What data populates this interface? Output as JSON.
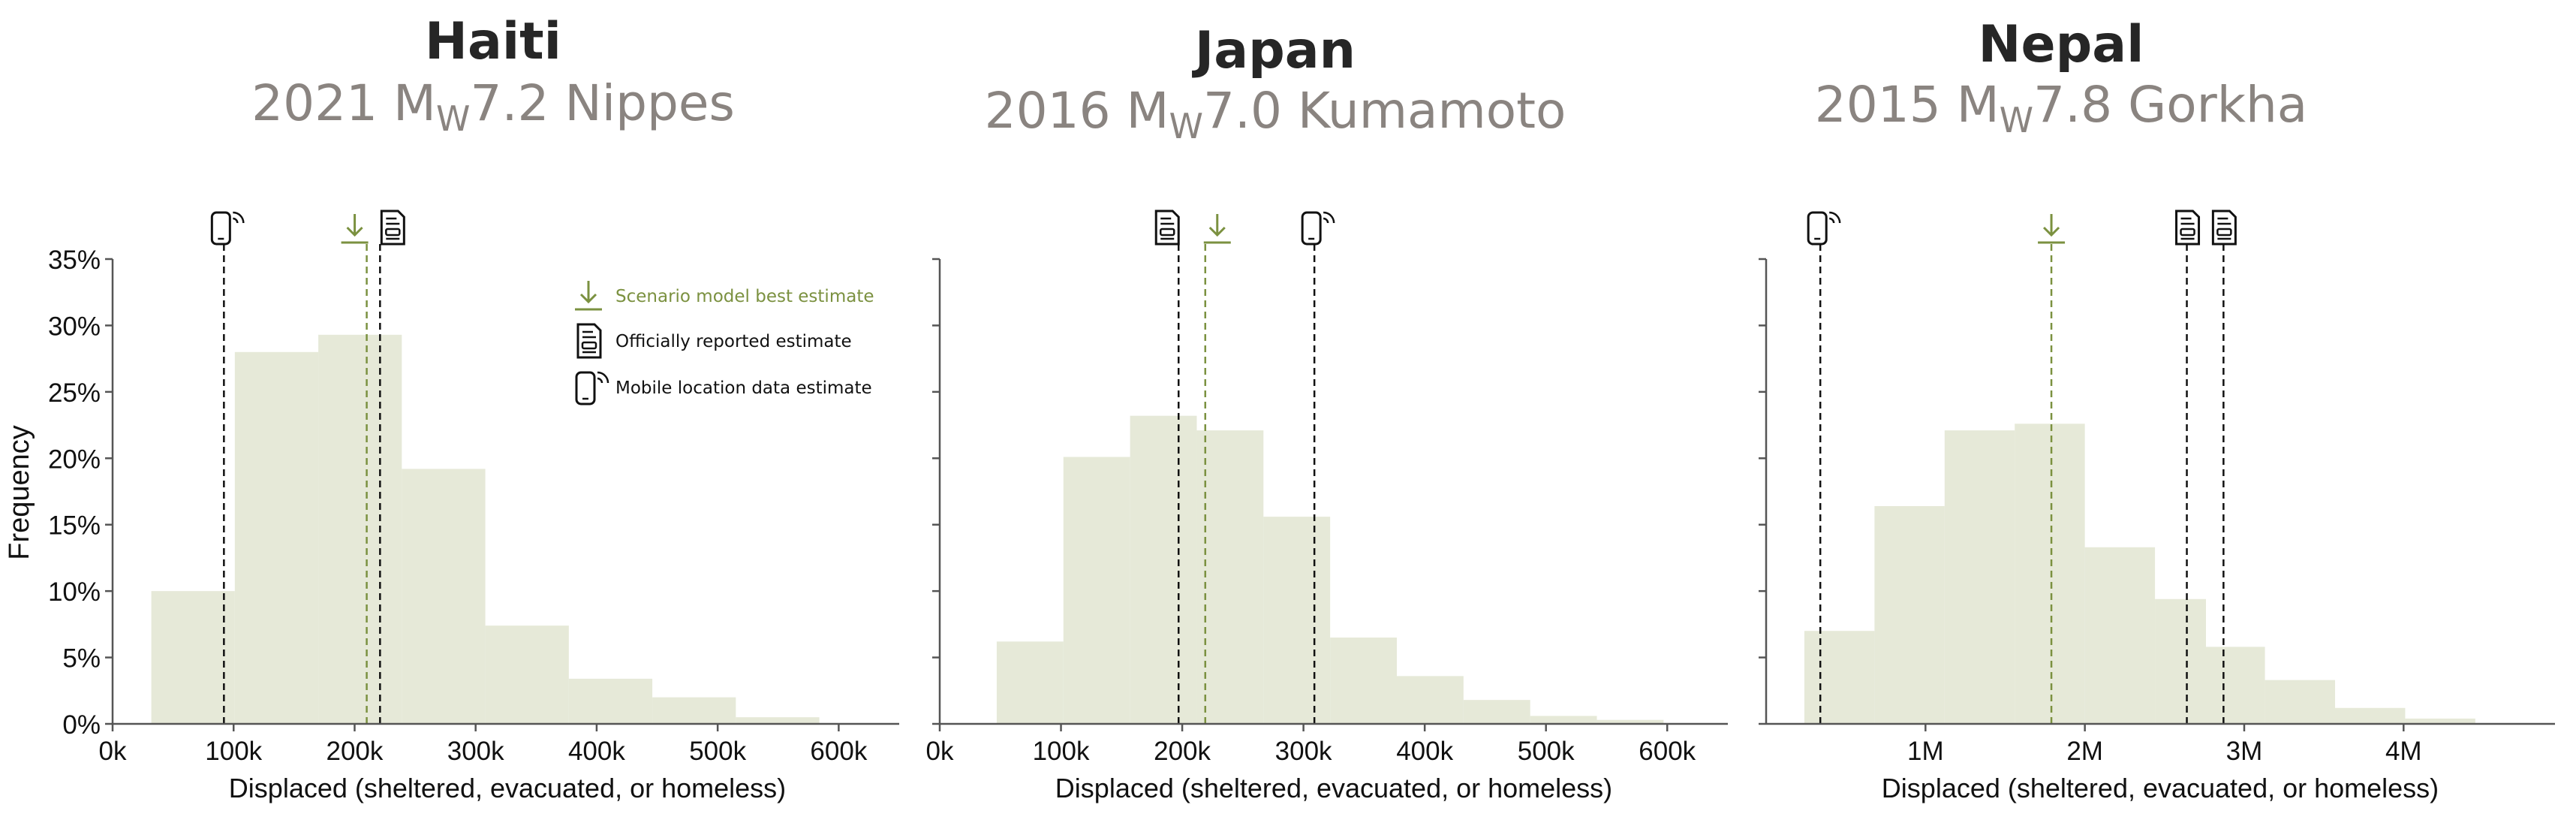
{
  "figure": {
    "ylabel": "Frequency",
    "legend": {
      "placement": "top-right of first panel",
      "items": [
        {
          "icon": "download-arrow-icon",
          "label": "Scenario model best estimate",
          "color": "#7b9140"
        },
        {
          "icon": "document-icon",
          "label": "Officially reported estimate",
          "color": "#111111"
        },
        {
          "icon": "mobile-signal-icon",
          "label": "Mobile location data estimate",
          "color": "#111111"
        }
      ]
    },
    "colors": {
      "bar": "#e6e9d8",
      "scenario": "#7b9140",
      "reference": "#111111",
      "axis": "#555555"
    }
  },
  "chart_data": [
    {
      "type": "bar",
      "title": "Haiti",
      "subtitle": {
        "pre": "2021 M",
        "sub": "W",
        "post": "7.2 Nippes"
      },
      "xlabel": "Displaced (sheltered, evacuated, or homeless)",
      "ylabel": "Frequency",
      "xlim": [
        0,
        650000
      ],
      "ylim": [
        0,
        35
      ],
      "xticks": [
        0,
        100000,
        200000,
        300000,
        400000,
        500000,
        600000
      ],
      "xtick_labels": [
        "0k",
        "100k",
        "200k",
        "300k",
        "400k",
        "500k",
        "600k"
      ],
      "yticks": [
        0,
        5,
        10,
        15,
        20,
        25,
        30,
        35
      ],
      "ytick_labels": [
        "0%",
        "5%",
        "10%",
        "15%",
        "20%",
        "25%",
        "30%",
        "35%"
      ],
      "bin_edges": [
        32000,
        101000,
        170000,
        239000,
        308000,
        377000,
        446000,
        515000,
        584000
      ],
      "values": [
        10.0,
        28.0,
        29.3,
        19.2,
        7.4,
        3.4,
        2.0,
        0.5
      ],
      "markers": [
        {
          "kind": "mobile",
          "x": 92000
        },
        {
          "kind": "scenario",
          "x": 210000
        },
        {
          "kind": "official",
          "x": 221000
        }
      ]
    },
    {
      "type": "bar",
      "title": "Japan",
      "subtitle": {
        "pre": "2016 M",
        "sub": "W",
        "post": "7.0 Kumamoto"
      },
      "xlabel": "Displaced (sheltered, evacuated, or homeless)",
      "ylabel": "",
      "xlim": [
        0,
        650000
      ],
      "ylim": [
        0,
        35
      ],
      "xticks": [
        0,
        100000,
        200000,
        300000,
        400000,
        500000,
        600000
      ],
      "xtick_labels": [
        "0k",
        "100k",
        "200k",
        "300k",
        "400k",
        "500k",
        "600k"
      ],
      "yticks": [
        0,
        5,
        10,
        15,
        20,
        25,
        30,
        35
      ],
      "ytick_labels": [],
      "bin_edges": [
        47000,
        102000,
        157000,
        212000,
        267000,
        322000,
        377000,
        432000,
        487000,
        542000,
        597000
      ],
      "values": [
        6.2,
        20.1,
        23.2,
        22.1,
        15.6,
        6.5,
        3.6,
        1.8,
        0.6,
        0.3
      ],
      "markers": [
        {
          "kind": "official",
          "x": 197000
        },
        {
          "kind": "scenario",
          "x": 219000
        },
        {
          "kind": "mobile",
          "x": 309000
        }
      ]
    },
    {
      "type": "bar",
      "title": "Nepal",
      "subtitle": {
        "pre": "2015 M",
        "sub": "W",
        "post": "7.8 Gorkha"
      },
      "xlabel": "Displaced (sheltered, evacuated, or homeless)",
      "ylabel": "",
      "xlim": [
        0,
        4950000
      ],
      "ylim": [
        0,
        35
      ],
      "xticks": [
        1000000,
        2000000,
        3000000,
        4000000
      ],
      "xtick_labels": [
        "1M",
        "2M",
        "3M",
        "4M"
      ],
      "yticks": [
        0,
        5,
        10,
        15,
        20,
        25,
        30,
        35
      ],
      "ytick_labels": [],
      "bin_edges": [
        240000,
        680000,
        1120000,
        1560000,
        2000000,
        2440000,
        2760000,
        3130000,
        3570000,
        4010000,
        4450000
      ],
      "values": [
        7.0,
        16.4,
        22.1,
        22.6,
        13.3,
        9.4,
        5.8,
        3.3,
        1.2,
        0.4
      ],
      "markers": [
        {
          "kind": "mobile",
          "x": 340000
        },
        {
          "kind": "scenario",
          "x": 1790000
        },
        {
          "kind": "official",
          "x": 2640000
        },
        {
          "kind": "official",
          "x": 2870000
        }
      ]
    }
  ]
}
